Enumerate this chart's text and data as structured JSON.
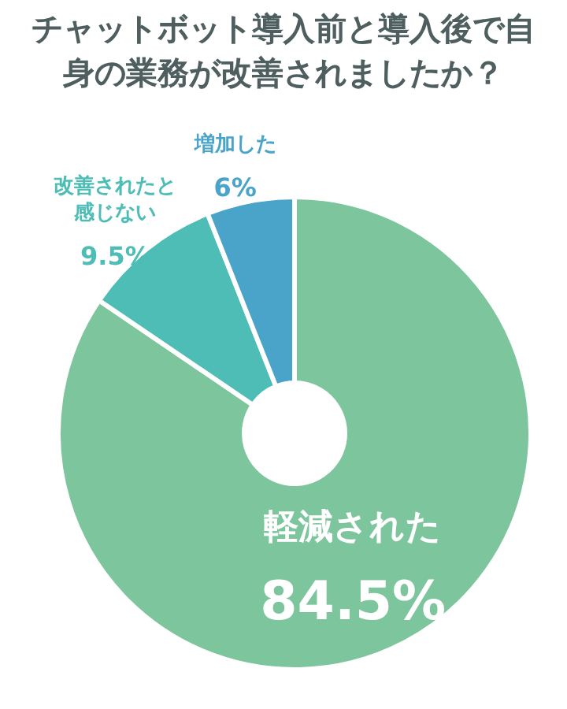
{
  "chart_data": {
    "type": "donut",
    "title": "チャットボット導入前と導入後で自身の業務が改善されましたか？",
    "categories": [
      "軽減された",
      "改善されたと感じない",
      "増加した"
    ],
    "values": [
      84.5,
      9.5,
      6
    ],
    "colors": [
      "#7dc59c",
      "#4dbdb6",
      "#4aa3c9"
    ],
    "value_labels": [
      "84.5%",
      "9.5%",
      "6%"
    ],
    "legend": false
  }
}
